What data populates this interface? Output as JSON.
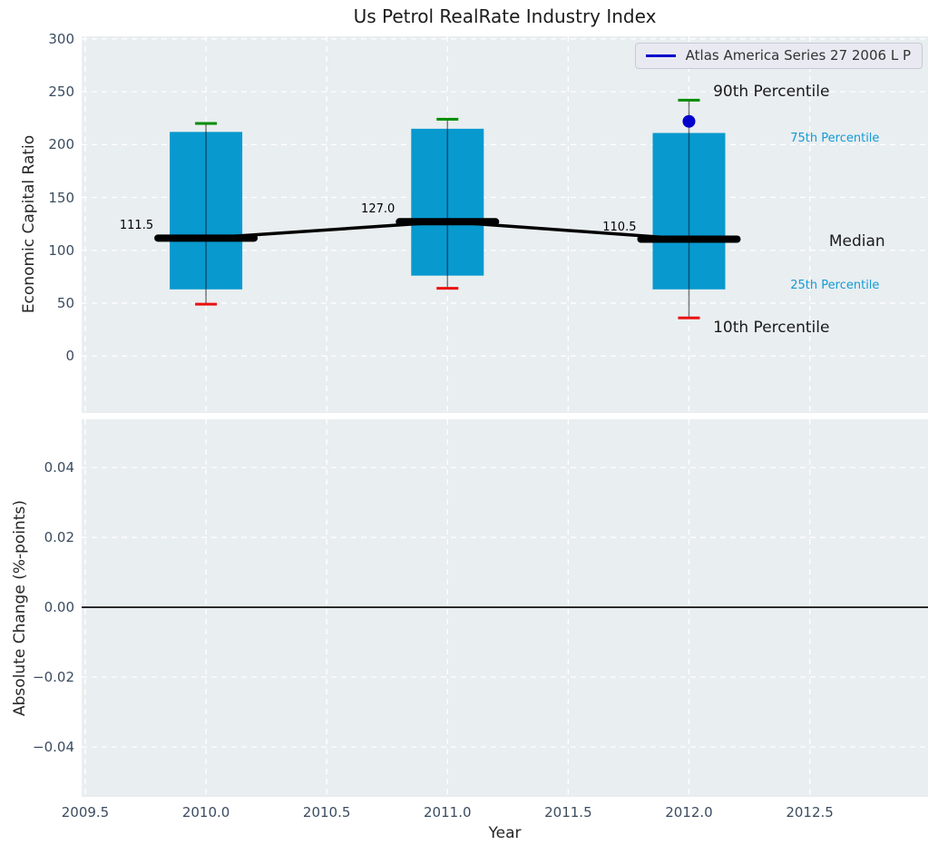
{
  "chart_data": {
    "type": "boxplot-timeseries",
    "title": "Us Petrol RealRate Industry Index",
    "xlabel": "Year",
    "x": {
      "lim": [
        2009.485,
        2012.99
      ],
      "ticks": [
        2009.5,
        2010.0,
        2010.5,
        2011.0,
        2011.5,
        2012.0,
        2012.5
      ],
      "tick_labels": [
        "2009.5",
        "2010.0",
        "2010.5",
        "2011.0",
        "2011.5",
        "2012.0",
        "2012.5"
      ],
      "grid": "dashed-white"
    },
    "panels": [
      {
        "name": "economic-capital-ratio",
        "ylabel": "Economic Capital Ratio",
        "ylim": [
          -54,
          302.5
        ],
        "yticks": [
          0,
          50,
          100,
          150,
          200,
          250,
          300
        ],
        "ytick_labels": [
          "0",
          "50",
          "100",
          "150",
          "200",
          "250",
          "300"
        ],
        "boxes": [
          {
            "year": 2010.0,
            "p10": 49,
            "p25": 63,
            "median": 111.5,
            "p75": 212,
            "p90": 220,
            "median_label": "111.5"
          },
          {
            "year": 2011.0,
            "p10": 64,
            "p25": 76,
            "median": 127.0,
            "p75": 215,
            "p90": 224,
            "median_label": "127.0"
          },
          {
            "year": 2012.0,
            "p10": 36,
            "p25": 63,
            "median": 110.5,
            "p75": 211,
            "p90": 242,
            "median_label": "110.5"
          }
        ],
        "marker": {
          "label": "Atlas America Series 27 2006 L P",
          "year": 2012.0,
          "value": 222
        },
        "annotations": [
          {
            "id": "90th-percentile",
            "text": "90th Percentile",
            "x": 2012.1,
            "y": 250,
            "size": 17,
            "color": "#1a1a1a"
          },
          {
            "id": "75th-percentile",
            "text": "75th Percentile",
            "x": 2012.42,
            "y": 205,
            "size": 13,
            "color": "#149bd6"
          },
          {
            "id": "median",
            "text": "Median",
            "x": 2012.58,
            "y": 108,
            "size": 17,
            "color": "#1a1a1a"
          },
          {
            "id": "25th-percentile",
            "text": "25th Percentile",
            "x": 2012.42,
            "y": 66,
            "size": 13,
            "color": "#149bd6"
          },
          {
            "id": "10th-percentile",
            "text": "10th Percentile",
            "x": 2012.1,
            "y": 26,
            "size": 17,
            "color": "#1a1a1a"
          }
        ]
      },
      {
        "name": "absolute-change",
        "ylabel": "Absolute Change (%-points)",
        "ylim": [
          -0.0543,
          0.0538
        ],
        "yticks": [
          -0.04,
          -0.02,
          0.0,
          0.02,
          0.04
        ],
        "ytick_labels": [
          "−0.04",
          "−0.02",
          "0.00",
          "0.02",
          "0.04"
        ],
        "zero_line": 0.0
      }
    ],
    "legend": {
      "entries": [
        {
          "label": "Atlas America Series 27 2006 L P",
          "color": "#0000cc",
          "style": "line"
        }
      ],
      "position": "upper-right"
    },
    "colors": {
      "box_fill": "#0899cf",
      "whisker": "rgba(0,0,0,0.5)",
      "cap_top": "#008c00",
      "cap_bottom": "#ea1010",
      "median_line": "#000000",
      "marker": "#0000cc",
      "axes_background": "#e9eef0",
      "grid": "#ffffff",
      "tick_label": "#3b4c60",
      "annotation_accent": "#149bd6"
    }
  }
}
